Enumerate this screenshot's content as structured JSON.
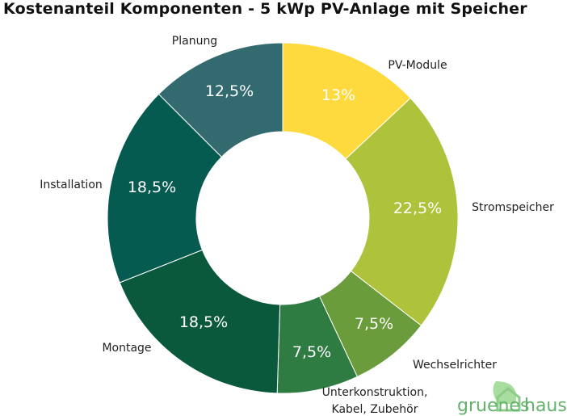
{
  "chart_data": {
    "type": "pie",
    "donut": true,
    "title": "Kostenanteil Komponenten - 5 kWp PV-Anlage mit Speicher",
    "slices": [
      {
        "label": "PV-Module",
        "value": 13,
        "value_label": "13%",
        "color": "#FEDA3F"
      },
      {
        "label": "Stromspeicher",
        "value": 22.5,
        "value_label": "22,5%",
        "color": "#AEC33B"
      },
      {
        "label": "Wechselrichter",
        "value": 7.5,
        "value_label": "7,5%",
        "color": "#6A9C3B"
      },
      {
        "label": "Unterkonstruktion, Kabel, Zubehör",
        "label_lines": [
          "Unterkonstruktion,",
          "Kabel, Zubehör"
        ],
        "value": 7.5,
        "value_label": "7,5%",
        "color": "#2F7C43"
      },
      {
        "label": "Montage",
        "value": 18.5,
        "value_label": "18,5%",
        "color": "#0B593C"
      },
      {
        "label": "Installation",
        "value": 18.5,
        "value_label": "18,5%",
        "color": "#065B50"
      },
      {
        "label": "Planung",
        "value": 12.5,
        "value_label": "12,5%",
        "color": "#336A6F"
      }
    ],
    "legend": "none"
  },
  "logo": {
    "text_left": "gruenes",
    "text_right": "haus",
    "color": "#63B26B",
    "leaf_color": "#A8DDA0"
  }
}
